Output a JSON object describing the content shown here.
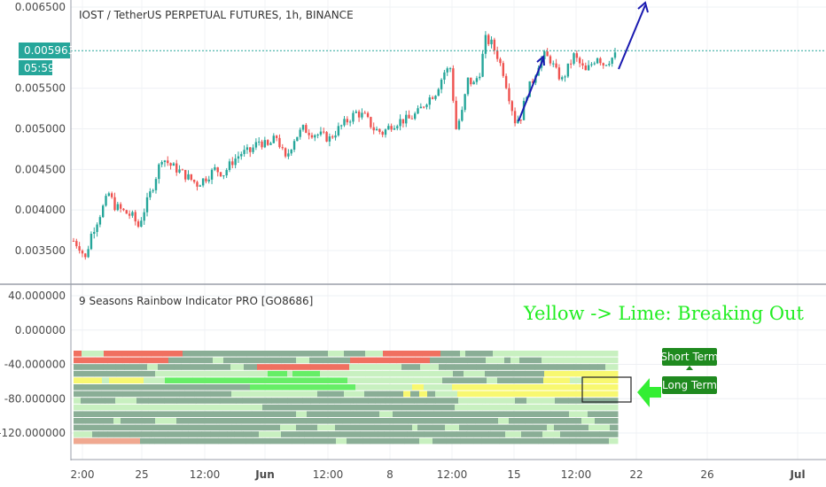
{
  "chart_data": [
    {
      "type": "candlestick",
      "title": "IOST / TetherUS PERPETUAL FUTURES, 1h, BINANCE",
      "y_ticks": [
        "0.006500",
        "0.005500",
        "0.005000",
        "0.004500",
        "0.004000",
        "0.003500"
      ],
      "ylim": [
        0.0032,
        0.0066
      ],
      "last_price": "0.005963",
      "last_price_value": 0.005963,
      "countdown": "05:59",
      "price_path": [
        [
          0,
          0.00362
        ],
        [
          2,
          0.00355
        ],
        [
          4,
          0.0034
        ],
        [
          6,
          0.0037
        ],
        [
          9,
          0.00395
        ],
        [
          12,
          0.0042
        ],
        [
          14,
          0.00405
        ],
        [
          17,
          0.00398
        ],
        [
          20,
          0.00392
        ],
        [
          22,
          0.0038
        ],
        [
          24,
          0.004
        ],
        [
          27,
          0.0043
        ],
        [
          30,
          0.00465
        ],
        [
          33,
          0.00455
        ],
        [
          36,
          0.00448
        ],
        [
          39,
          0.0044
        ],
        [
          42,
          0.00432
        ],
        [
          45,
          0.0044
        ],
        [
          48,
          0.0045
        ],
        [
          51,
          0.00445
        ],
        [
          54,
          0.0046
        ],
        [
          57,
          0.0047
        ],
        [
          60,
          0.00472
        ],
        [
          63,
          0.00485
        ],
        [
          66,
          0.00478
        ],
        [
          69,
          0.0049
        ],
        [
          72,
          0.00462
        ],
        [
          75,
          0.00488
        ],
        [
          78,
          0.005
        ],
        [
          81,
          0.00495
        ],
        [
          84,
          0.00492
        ],
        [
          87,
          0.00488
        ],
        [
          90,
          0.005
        ],
        [
          93,
          0.0051
        ],
        [
          96,
          0.0052
        ],
        [
          99,
          0.00515
        ],
        [
          102,
          0.005
        ],
        [
          105,
          0.00495
        ],
        [
          108,
          0.00505
        ],
        [
          111,
          0.0051
        ],
        [
          114,
          0.00512
        ],
        [
          117,
          0.0052
        ],
        [
          120,
          0.00535
        ],
        [
          123,
          0.00545
        ],
        [
          126,
          0.0057
        ],
        [
          128,
          0.00575
        ],
        [
          130,
          0.005
        ],
        [
          132,
          0.0052
        ],
        [
          134,
          0.0056
        ],
        [
          136,
          0.00555
        ],
        [
          138,
          0.0057
        ],
        [
          140,
          0.0061
        ],
        [
          142,
          0.00605
        ],
        [
          144,
          0.0059
        ],
        [
          146,
          0.0057
        ],
        [
          148,
          0.0054
        ],
        [
          150,
          0.0051
        ],
        [
          152,
          0.00515
        ],
        [
          154,
          0.00545
        ],
        [
          156,
          0.0056
        ],
        [
          158,
          0.0058
        ],
        [
          160,
          0.0059
        ],
        [
          162,
          0.00585
        ],
        [
          164,
          0.0057
        ],
        [
          166,
          0.0056
        ],
        [
          168,
          0.00575
        ],
        [
          170,
          0.0059
        ],
        [
          172,
          0.0058
        ],
        [
          174,
          0.0057
        ],
        [
          176,
          0.0058
        ],
        [
          178,
          0.0059
        ],
        [
          180,
          0.0058
        ],
        [
          182,
          0.00585
        ],
        [
          184,
          0.0059
        ]
      ]
    },
    {
      "type": "heatmap",
      "title": "9 Seasons Rainbow Indicator PRO [GO8686]",
      "y_ticks": [
        "40.000000",
        "0.000000",
        "-40.000000",
        "-80.000000",
        "-120.000000"
      ],
      "x_ticks": [
        "2:00",
        "25",
        "12:00",
        "Jun",
        "12:00",
        "8",
        "12:00",
        "15",
        "12:00",
        "22",
        "26",
        "Jul"
      ],
      "legend_colors": {
        "red": "#f07060",
        "grey": "#8aae96",
        "yellow": "#f8f870",
        "lime": "#66ee66",
        "pale": "#c8f0c0"
      }
    }
  ],
  "annotations": {
    "headline": "Yellow -> Lime: Breaking Out",
    "short_term": "Short Term",
    "long_term": "Long Term"
  }
}
